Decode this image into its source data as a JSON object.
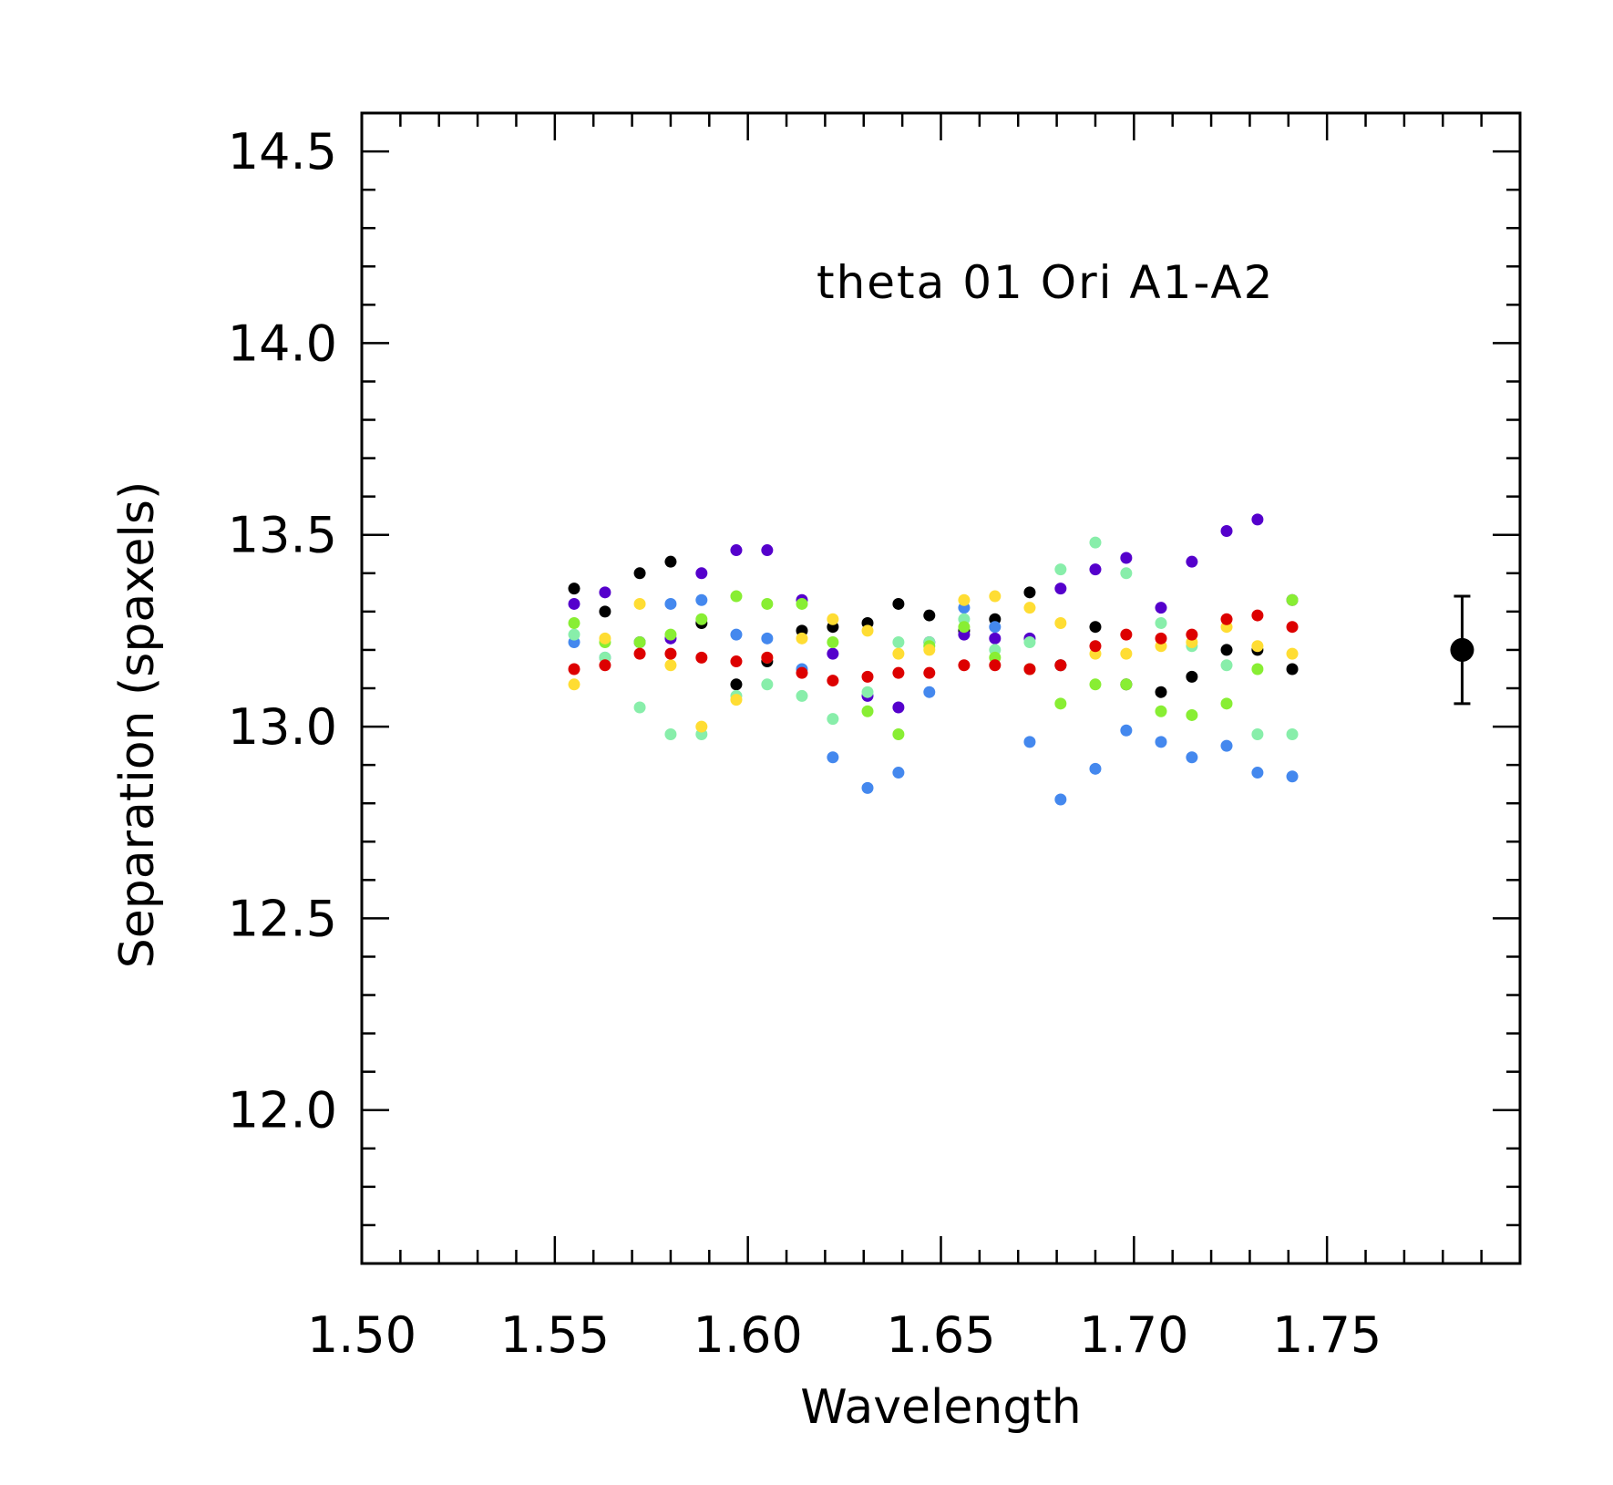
{
  "chart_data": {
    "type": "scatter",
    "xlabel": "Wavelength",
    "ylabel": "Separation (spaxels)",
    "annotation": "theta 01 Ori A1-A2",
    "xlim": [
      1.5,
      1.8
    ],
    "ylim": [
      11.6,
      14.6
    ],
    "x_ticks": [
      1.5,
      1.55,
      1.6,
      1.65,
      1.7,
      1.75
    ],
    "x_tick_labels": [
      "1.50",
      "1.55",
      "1.60",
      "1.65",
      "1.70",
      "1.75"
    ],
    "y_ticks": [
      12.0,
      12.5,
      13.0,
      13.5,
      14.0,
      14.5
    ],
    "y_tick_labels": [
      "12.0",
      "12.5",
      "13.0",
      "13.5",
      "14.0",
      "14.5"
    ],
    "x": [
      1.555,
      1.563,
      1.572,
      1.58,
      1.588,
      1.597,
      1.605,
      1.614,
      1.622,
      1.631,
      1.639,
      1.647,
      1.656,
      1.664,
      1.673,
      1.681,
      1.69,
      1.698,
      1.707,
      1.715,
      1.724,
      1.732,
      1.741
    ],
    "series": [
      {
        "color": "#000000",
        "values": [
          13.36,
          13.3,
          13.4,
          13.43,
          13.27,
          13.11,
          13.17,
          13.25,
          13.26,
          13.27,
          13.32,
          13.29,
          13.25,
          13.28,
          13.35,
          13.16,
          13.26,
          13.11,
          13.09,
          13.13,
          13.2,
          13.2,
          13.15
        ]
      },
      {
        "color": "#5500cc",
        "values": [
          13.32,
          13.35,
          13.22,
          13.23,
          13.4,
          13.46,
          13.46,
          13.33,
          13.19,
          13.08,
          13.05,
          13.22,
          13.24,
          13.23,
          13.23,
          13.36,
          13.41,
          13.44,
          13.31,
          13.43,
          13.51,
          13.54,
          13.33
        ]
      },
      {
        "color": "#4488ee",
        "values": [
          13.22,
          13.18,
          13.22,
          13.32,
          13.33,
          13.24,
          13.23,
          13.15,
          12.92,
          12.84,
          12.88,
          13.09,
          13.31,
          13.26,
          12.96,
          12.81,
          12.89,
          12.99,
          12.96,
          12.92,
          12.95,
          12.88,
          12.87
        ]
      },
      {
        "color": "#88eeaa",
        "values": [
          13.24,
          13.18,
          13.05,
          12.98,
          12.98,
          13.08,
          13.11,
          13.08,
          13.02,
          13.09,
          13.22,
          13.22,
          13.28,
          13.2,
          13.22,
          13.41,
          13.48,
          13.4,
          13.27,
          13.21,
          13.16,
          12.98,
          12.98
        ]
      },
      {
        "color": "#88ee33",
        "values": [
          13.27,
          13.22,
          13.22,
          13.24,
          13.28,
          13.34,
          13.32,
          13.32,
          13.22,
          13.04,
          12.98,
          13.21,
          13.26,
          13.18,
          13.15,
          13.06,
          13.11,
          13.11,
          13.04,
          13.03,
          13.06,
          13.15,
          13.33
        ]
      },
      {
        "color": "#ffdd33",
        "values": [
          13.11,
          13.23,
          13.32,
          13.16,
          13.0,
          13.07,
          13.18,
          13.23,
          13.28,
          13.25,
          13.19,
          13.2,
          13.33,
          13.34,
          13.31,
          13.27,
          13.19,
          13.19,
          13.21,
          13.22,
          13.26,
          13.21,
          13.19
        ]
      },
      {
        "color": "#dd0000",
        "values": [
          13.15,
          13.16,
          13.19,
          13.19,
          13.18,
          13.17,
          13.18,
          13.14,
          13.12,
          13.13,
          13.14,
          13.14,
          13.16,
          13.16,
          13.15,
          13.16,
          13.21,
          13.24,
          13.23,
          13.24,
          13.28,
          13.29,
          13.26
        ]
      }
    ],
    "errorbar": {
      "x": 1.785,
      "y": 13.2,
      "yerr_low": 0.14,
      "yerr_high": 0.14,
      "color": "#000000"
    },
    "grid": false,
    "legend": "none"
  }
}
